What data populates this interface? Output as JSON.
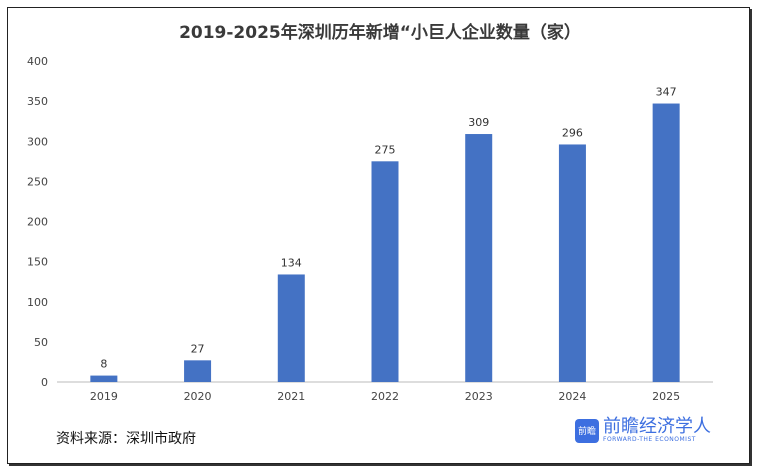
{
  "chart_data": {
    "type": "bar",
    "title": "2019-2025年深圳历年新增“小巨人企业数量（家）",
    "categories": [
      "2019",
      "2020",
      "2021",
      "2022",
      "2023",
      "2024",
      "2025"
    ],
    "values": [
      8,
      27,
      134,
      275,
      309,
      296,
      347
    ],
    "ylim": [
      0,
      400
    ],
    "yticks": [
      0,
      50,
      100,
      150,
      200,
      250,
      300,
      350,
      400
    ],
    "grid": false,
    "legend": "none",
    "bar_color": "#4472c4",
    "xlabel": "",
    "ylabel": ""
  },
  "source": "资料来源：深圳市政府",
  "logo": {
    "name": "前瞻经济学人",
    "sub": "FORWARD-THE ECONOMIST",
    "badge": "前瞻"
  }
}
